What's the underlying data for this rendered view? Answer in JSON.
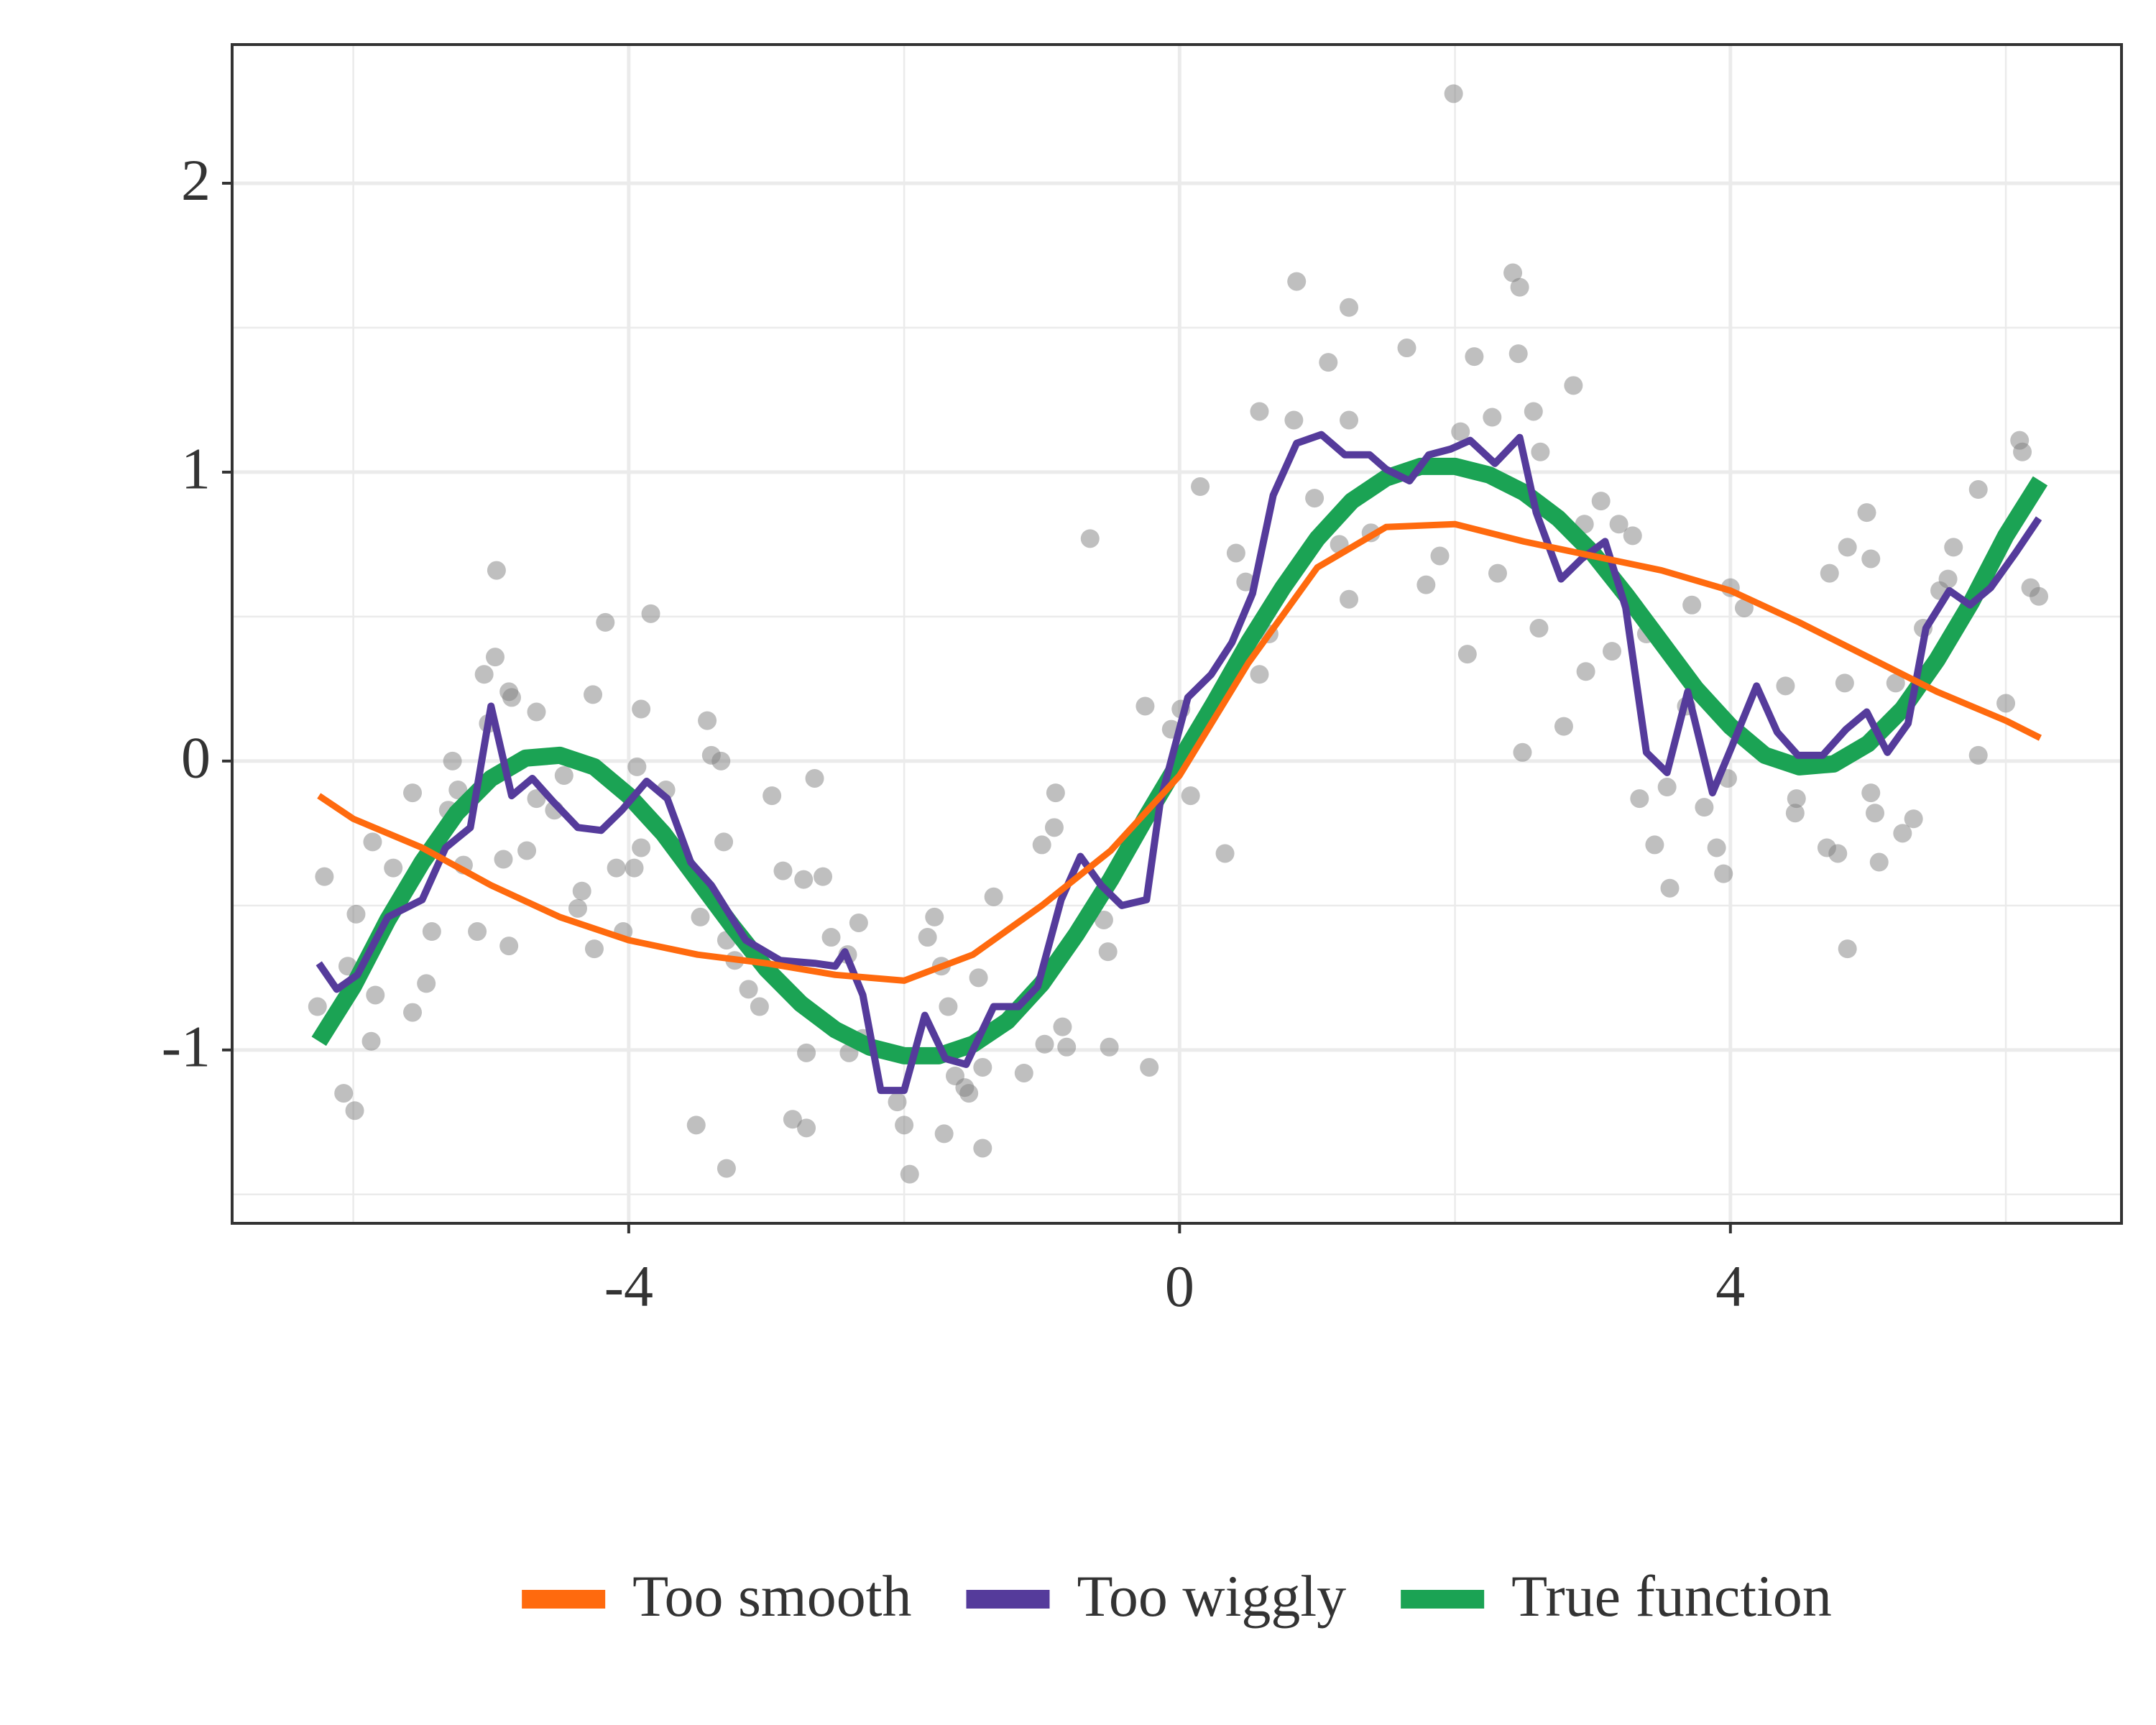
{
  "chart_data": {
    "type": "line",
    "xlim": [
      -6.88,
      6.84
    ],
    "ylim": [
      -1.6,
      2.48
    ],
    "xticks": [
      -4,
      0,
      4
    ],
    "yticks": [
      -1,
      0,
      1,
      2
    ],
    "grid": true,
    "legend": "bottom",
    "points": {
      "color": "#7f7f7f",
      "x": [
        -6.21,
        -6.26,
        -6.07,
        -5.99,
        -5.87,
        -6.04,
        -5.98,
        -5.86,
        -5.84,
        -5.71,
        -5.57,
        -5.57,
        -5.47,
        -5.43,
        -5.28,
        -5.31,
        -5.24,
        -5.2,
        -5.1,
        -5.05,
        -5.02,
        -4.97,
        -4.96,
        -4.91,
        -4.87,
        -4.87,
        -4.85,
        -4.74,
        -4.67,
        -4.67,
        -4.54,
        -4.47,
        -4.37,
        -4.34,
        -4.26,
        -4.25,
        -4.17,
        -4.09,
        -4.04,
        -3.96,
        -3.94,
        -3.91,
        -3.91,
        -3.84,
        -3.73,
        -3.51,
        -3.48,
        -3.43,
        -3.4,
        -3.33,
        -3.31,
        -3.29,
        -3.29,
        -3.23,
        -3.13,
        -3.05,
        -2.96,
        -2.88,
        -2.81,
        -2.73,
        -2.71,
        -2.71,
        -2.65,
        -2.59,
        -2.53,
        -2.41,
        -2.4,
        -2.33,
        -2.3,
        -2.05,
        -2.0,
        -1.96,
        -1.83,
        -1.78,
        -1.73,
        -1.71,
        -1.68,
        -1.63,
        -1.56,
        -1.53,
        -1.46,
        -1.43,
        -1.43,
        -1.35,
        -1.13,
        -1.0,
        -0.98,
        -0.91,
        -0.9,
        -0.85,
        -0.82,
        -0.65,
        -0.55,
        -0.52,
        -0.51,
        -0.25,
        -0.22,
        -0.06,
        0.01,
        0.08,
        0.15,
        0.33,
        0.41,
        0.48,
        0.58,
        0.58,
        0.65,
        0.83,
        0.85,
        0.98,
        1.08,
        1.16,
        1.23,
        1.23,
        1.23,
        1.39,
        1.65,
        1.79,
        1.89,
        1.99,
        2.04,
        2.09,
        2.14,
        2.27,
        2.31,
        2.42,
        2.46,
        2.47,
        2.49,
        2.57,
        2.61,
        2.62,
        2.79,
        2.86,
        2.94,
        2.95,
        3.06,
        3.14,
        3.19,
        3.29,
        3.34,
        3.39,
        3.45,
        3.54,
        3.56,
        3.68,
        3.72,
        3.81,
        3.9,
        3.95,
        3.98,
        4.0,
        4.1,
        4.4,
        4.48,
        4.47,
        4.7,
        4.72,
        4.78,
        4.83,
        4.85,
        4.85,
        4.99,
        5.02,
        5.02,
        5.05,
        5.08,
        5.2,
        5.25,
        5.33,
        5.4,
        5.52,
        5.58,
        5.62,
        5.8,
        5.8,
        6.0,
        6.1,
        6.12,
        6.18,
        6.24
      ],
      "y": [
        -0.4,
        -0.85,
        -1.15,
        -1.21,
        -0.97,
        -0.71,
        -0.53,
        -0.28,
        -0.81,
        -0.37,
        -0.11,
        -0.87,
        -0.77,
        -0.59,
        0.0,
        -0.17,
        -0.1,
        -0.36,
        -0.59,
        0.3,
        0.13,
        0.36,
        0.66,
        -0.34,
        -0.64,
        0.24,
        0.22,
        -0.31,
        0.17,
        -0.13,
        -0.17,
        -0.05,
        -0.51,
        -0.45,
        0.23,
        -0.65,
        0.48,
        -0.37,
        -0.59,
        -0.37,
        -0.02,
        -0.3,
        0.18,
        0.51,
        -0.1,
        -1.26,
        -0.54,
        0.14,
        0.02,
        0.0,
        -0.28,
        -1.41,
        -0.62,
        -0.69,
        -0.79,
        -0.85,
        -0.12,
        -0.38,
        -1.24,
        -0.41,
        -1.01,
        -1.27,
        -0.06,
        -0.4,
        -0.61,
        -0.67,
        -1.01,
        -0.56,
        -0.96,
        -1.18,
        -1.26,
        -1.43,
        -0.61,
        -0.54,
        -0.71,
        -1.29,
        -0.85,
        -1.09,
        -1.13,
        -1.15,
        -0.75,
        -1.06,
        -1.34,
        -0.47,
        -1.08,
        -0.29,
        -0.98,
        -0.23,
        -0.11,
        -0.92,
        -0.99,
        0.77,
        -0.55,
        -0.66,
        -0.99,
        0.19,
        -1.06,
        0.11,
        0.18,
        -0.12,
        0.95,
        -0.32,
        0.72,
        0.62,
        0.3,
        1.21,
        0.44,
        1.18,
        1.66,
        0.91,
        1.38,
        0.75,
        1.57,
        0.56,
        1.18,
        0.79,
        1.43,
        0.61,
        0.71,
        2.31,
        1.14,
        0.37,
        1.4,
        1.19,
        0.65,
        1.69,
        1.41,
        1.64,
        0.03,
        1.21,
        0.46,
        1.07,
        0.12,
        1.3,
        0.82,
        0.31,
        0.9,
        0.38,
        0.82,
        0.78,
        -0.13,
        0.44,
        -0.29,
        -0.09,
        -0.44,
        0.19,
        0.54,
        -0.16,
        -0.3,
        -0.39,
        -0.06,
        0.6,
        0.53,
        0.26,
        -0.13,
        -0.18,
        -0.3,
        0.65,
        -0.32,
        0.27,
        -0.65,
        0.74,
        0.86,
        -0.11,
        0.7,
        -0.18,
        -0.35,
        0.27,
        -0.25,
        -0.2,
        0.46,
        0.59,
        0.63,
        0.74,
        0.94,
        0.02,
        0.2,
        1.11,
        1.07,
        0.6,
        0.57
      ]
    },
    "series": [
      {
        "name": "Too smooth",
        "color": "#ff6a0e",
        "x": [
          -6.25,
          -6.0,
          -5.5,
          -5.0,
          -4.5,
          -4.0,
          -3.5,
          -3.0,
          -2.5,
          -2.0,
          -1.5,
          -1.0,
          -0.5,
          0,
          0.5,
          1.0,
          1.5,
          2.0,
          2.5,
          3.0,
          3.5,
          4.0,
          4.5,
          5.0,
          5.5,
          6.0,
          6.25
        ],
        "values": [
          -0.12,
          -0.2,
          -0.3,
          -0.43,
          -0.54,
          -0.62,
          -0.67,
          -0.7,
          -0.74,
          -0.76,
          -0.67,
          -0.5,
          -0.31,
          -0.05,
          0.34,
          0.67,
          0.81,
          0.82,
          0.76,
          0.71,
          0.66,
          0.59,
          0.48,
          0.36,
          0.24,
          0.14,
          0.08
        ]
      },
      {
        "name": "Too wiggly",
        "color": "#553b9b",
        "x": [
          -6.25,
          -6.12,
          -5.97,
          -5.75,
          -5.5,
          -5.33,
          -5.15,
          -5.0,
          -4.85,
          -4.7,
          -4.55,
          -4.37,
          -4.2,
          -4.05,
          -3.87,
          -3.72,
          -3.55,
          -3.4,
          -3.15,
          -2.9,
          -2.65,
          -2.5,
          -2.43,
          -2.3,
          -2.17,
          -2.0,
          -1.85,
          -1.7,
          -1.55,
          -1.35,
          -1.17,
          -1.03,
          -0.86,
          -0.72,
          -0.57,
          -0.42,
          -0.24,
          -0.14,
          0.06,
          0.23,
          0.38,
          0.53,
          0.68,
          0.85,
          1.03,
          1.2,
          1.38,
          1.5,
          1.67,
          1.81,
          1.97,
          2.11,
          2.29,
          2.47,
          2.59,
          2.77,
          2.92,
          3.09,
          3.24,
          3.39,
          3.54,
          3.69,
          3.87,
          4.01,
          4.19,
          4.34,
          4.49,
          4.67,
          4.84,
          4.99,
          5.14,
          5.29,
          5.42,
          5.59,
          5.74,
          5.89,
          6.07,
          6.24
        ],
        "values": [
          -0.7,
          -0.79,
          -0.74,
          -0.54,
          -0.48,
          -0.3,
          -0.23,
          0.19,
          -0.12,
          -0.06,
          -0.14,
          -0.23,
          -0.24,
          -0.17,
          -0.07,
          -0.13,
          -0.35,
          -0.43,
          -0.62,
          -0.69,
          -0.7,
          -0.71,
          -0.66,
          -0.81,
          -1.14,
          -1.14,
          -0.88,
          -1.03,
          -1.05,
          -0.85,
          -0.85,
          -0.78,
          -0.48,
          -0.33,
          -0.43,
          -0.5,
          -0.48,
          -0.14,
          0.22,
          0.3,
          0.41,
          0.58,
          0.92,
          1.1,
          1.13,
          1.06,
          1.06,
          1.01,
          0.97,
          1.06,
          1.08,
          1.11,
          1.03,
          1.12,
          0.86,
          0.63,
          0.7,
          0.76,
          0.53,
          0.03,
          -0.04,
          0.24,
          -0.11,
          0.05,
          0.26,
          0.1,
          0.02,
          0.02,
          0.11,
          0.17,
          0.03,
          0.13,
          0.46,
          0.59,
          0.54,
          0.6,
          0.72,
          0.84
        ]
      },
      {
        "name": "True function",
        "color": "#1ba354",
        "x": [
          -6.25,
          -6.0,
          -5.75,
          -5.5,
          -5.25,
          -5.0,
          -4.75,
          -4.5,
          -4.25,
          -4.0,
          -3.75,
          -3.5,
          -3.25,
          -3.0,
          -2.75,
          -2.5,
          -2.25,
          -2.0,
          -1.75,
          -1.5,
          -1.25,
          -1.0,
          -0.75,
          -0.5,
          -0.25,
          0,
          0.25,
          0.5,
          0.75,
          1.0,
          1.25,
          1.5,
          1.75,
          2.0,
          2.25,
          2.5,
          2.75,
          3.0,
          3.25,
          3.5,
          3.75,
          4.0,
          4.25,
          4.5,
          4.75,
          5.0,
          5.25,
          5.5,
          5.75,
          6.0,
          6.25
        ],
        "values": [
          -0.97,
          -0.78,
          -0.55,
          -0.35,
          -0.18,
          -0.06,
          0.01,
          0.02,
          -0.02,
          -0.12,
          -0.25,
          -0.41,
          -0.57,
          -0.72,
          -0.84,
          -0.93,
          -0.99,
          -1.02,
          -1.02,
          -0.98,
          -0.9,
          -0.77,
          -0.6,
          -0.41,
          -0.2,
          0.0,
          0.2,
          0.41,
          0.6,
          0.77,
          0.9,
          0.98,
          1.02,
          1.02,
          0.99,
          0.93,
          0.84,
          0.72,
          0.57,
          0.41,
          0.25,
          0.12,
          0.02,
          -0.02,
          -0.01,
          0.06,
          0.18,
          0.35,
          0.55,
          0.78,
          0.97
        ]
      }
    ]
  }
}
